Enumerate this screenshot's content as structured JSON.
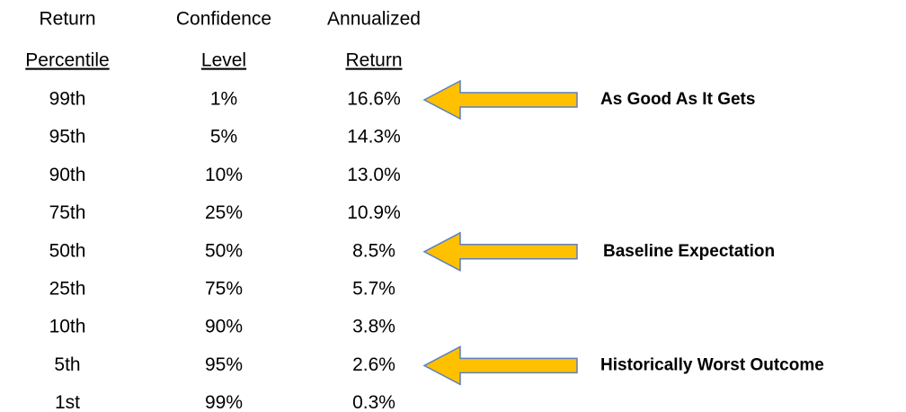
{
  "table": {
    "headers": [
      [
        "Return",
        "Percentile"
      ],
      [
        "Confidence",
        "Level"
      ],
      [
        "Annualized",
        "Return"
      ]
    ],
    "rows": [
      [
        "99th",
        "1%",
        "16.6%"
      ],
      [
        "95th",
        "5%",
        "14.3%"
      ],
      [
        "90th",
        "10%",
        "13.0%"
      ],
      [
        "75th",
        "25%",
        "10.9%"
      ],
      [
        "50th",
        "50%",
        "8.5%"
      ],
      [
        "25th",
        "75%",
        "5.7%"
      ],
      [
        "10th",
        "90%",
        "3.8%"
      ],
      [
        "5th",
        "95%",
        "2.6%"
      ],
      [
        "1st",
        "99%",
        "0.3%"
      ]
    ]
  },
  "annotations": [
    "As Good As It Gets",
    "Baseline Expectation",
    "Historically Worst Outcome"
  ]
}
